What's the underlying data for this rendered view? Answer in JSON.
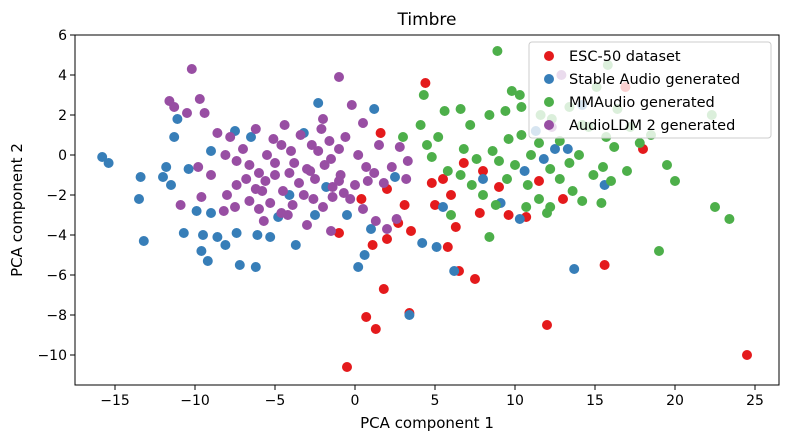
{
  "chart_data": {
    "type": "scatter",
    "title": "Timbre",
    "xlabel": "PCA component 1",
    "ylabel": "PCA component 2",
    "xlim": [
      -17.5,
      26.5
    ],
    "ylim": [
      -11.5,
      6.0
    ],
    "xticks": [
      -15,
      -10,
      -5,
      0,
      5,
      10,
      15,
      20,
      25
    ],
    "yticks": [
      -10,
      -8,
      -6,
      -4,
      -2,
      0,
      2,
      4,
      6
    ],
    "xtick_labels": [
      "−15",
      "−10",
      "−5",
      "0",
      "5",
      "10",
      "15",
      "20",
      "25"
    ],
    "ytick_labels": [
      "−10",
      "−8",
      "−6",
      "−4",
      "−2",
      "0",
      "2",
      "4",
      "6"
    ],
    "grid": false,
    "legend_position": "top-right",
    "series": [
      {
        "name": "ESC-50 dataset",
        "color": "#e41a1c",
        "points": [
          [
            -0.5,
            -10.6
          ],
          [
            1.3,
            -8.7
          ],
          [
            0.7,
            -8.1
          ],
          [
            1.8,
            -6.7
          ],
          [
            3.4,
            -7.9
          ],
          [
            4.4,
            3.6
          ],
          [
            2.0,
            -4.2
          ],
          [
            1.1,
            -4.5
          ],
          [
            -1.0,
            -3.9
          ],
          [
            2.7,
            -3.4
          ],
          [
            3.5,
            -3.8
          ],
          [
            4.8,
            -1.4
          ],
          [
            3.1,
            -2.5
          ],
          [
            2.0,
            -1.7
          ],
          [
            0.4,
            -2.2
          ],
          [
            1.6,
            1.1
          ],
          [
            5.5,
            -1.2
          ],
          [
            6.0,
            -2.0
          ],
          [
            6.3,
            -3.6
          ],
          [
            6.5,
            -5.8
          ],
          [
            7.5,
            -6.2
          ],
          [
            7.8,
            -2.9
          ],
          [
            8.0,
            -0.8
          ],
          [
            9.6,
            -3.0
          ],
          [
            10.7,
            -3.1
          ],
          [
            12.0,
            -8.5
          ],
          [
            15.6,
            -5.5
          ],
          [
            16.9,
            3.4
          ],
          [
            18.0,
            0.3
          ],
          [
            24.5,
            -10.0
          ],
          [
            5.0,
            -2.5
          ],
          [
            9.0,
            -1.6
          ],
          [
            11.5,
            -1.3
          ],
          [
            6.8,
            -0.4
          ],
          [
            13.0,
            -2.2
          ],
          [
            5.8,
            -4.6
          ]
        ]
      },
      {
        "name": "Stable Audio generated",
        "color": "#377eb8",
        "points": [
          [
            -15.8,
            -0.1
          ],
          [
            -15.4,
            -0.4
          ],
          [
            -13.5,
            -2.2
          ],
          [
            -13.4,
            -1.1
          ],
          [
            -13.2,
            -4.3
          ],
          [
            -12.0,
            -1.1
          ],
          [
            -11.8,
            -0.6
          ],
          [
            -11.5,
            -1.5
          ],
          [
            -11.1,
            1.8
          ],
          [
            -11.3,
            0.9
          ],
          [
            -10.7,
            -3.9
          ],
          [
            -10.4,
            -0.7
          ],
          [
            -9.9,
            -2.8
          ],
          [
            -9.6,
            -4.8
          ],
          [
            -9.5,
            -4.0
          ],
          [
            -9.2,
            -5.3
          ],
          [
            -9.0,
            -2.9
          ],
          [
            -8.6,
            -4.1
          ],
          [
            -8.1,
            -4.5
          ],
          [
            -7.4,
            -3.9
          ],
          [
            -7.2,
            -5.5
          ],
          [
            -6.2,
            -5.6
          ],
          [
            -6.1,
            -4.0
          ],
          [
            -5.3,
            -4.1
          ],
          [
            -4.8,
            -3.1
          ],
          [
            -4.1,
            -2.0
          ],
          [
            -3.7,
            -4.5
          ],
          [
            -2.5,
            -3.0
          ],
          [
            -2.3,
            2.6
          ],
          [
            -1.8,
            -1.6
          ],
          [
            -0.5,
            -3.0
          ],
          [
            0.2,
            -5.6
          ],
          [
            0.6,
            -5.0
          ],
          [
            1.0,
            -3.7
          ],
          [
            2.5,
            -1.1
          ],
          [
            3.4,
            -8.0
          ],
          [
            4.2,
            -4.4
          ],
          [
            5.1,
            -4.6
          ],
          [
            5.5,
            -2.6
          ],
          [
            6.2,
            -5.8
          ],
          [
            8.0,
            -1.2
          ],
          [
            9.1,
            -2.4
          ],
          [
            10.3,
            -3.2
          ],
          [
            10.6,
            -0.8
          ],
          [
            11.3,
            1.2
          ],
          [
            11.8,
            -0.2
          ],
          [
            12.5,
            0.3
          ],
          [
            13.3,
            0.3
          ],
          [
            13.7,
            -5.7
          ],
          [
            14.2,
            2.5
          ],
          [
            15.6,
            -1.5
          ],
          [
            -6.5,
            0.9
          ],
          [
            -7.5,
            1.2
          ],
          [
            -3.2,
            1.1
          ],
          [
            1.2,
            2.3
          ],
          [
            -9.0,
            0.2
          ]
        ]
      },
      {
        "name": "MMAudio generated",
        "color": "#4daf4a",
        "points": [
          [
            8.9,
            5.2
          ],
          [
            4.3,
            3.0
          ],
          [
            5.6,
            2.2
          ],
          [
            6.6,
            2.3
          ],
          [
            7.2,
            1.5
          ],
          [
            8.4,
            2.0
          ],
          [
            9.4,
            2.2
          ],
          [
            10.4,
            2.4
          ],
          [
            9.8,
            3.2
          ],
          [
            10.3,
            3.0
          ],
          [
            11.6,
            2.0
          ],
          [
            12.3,
            1.8
          ],
          [
            13.4,
            2.4
          ],
          [
            14.2,
            1.5
          ],
          [
            14.6,
            1.4
          ],
          [
            15.1,
            3.4
          ],
          [
            15.8,
            4.5
          ],
          [
            16.4,
            2.3
          ],
          [
            17.2,
            1.4
          ],
          [
            17.8,
            0.6
          ],
          [
            18.5,
            1.0
          ],
          [
            19.5,
            -0.5
          ],
          [
            20.0,
            -1.3
          ],
          [
            22.3,
            2.0
          ],
          [
            22.5,
            -2.6
          ],
          [
            23.4,
            -3.2
          ],
          [
            19.0,
            -4.8
          ],
          [
            15.5,
            -0.6
          ],
          [
            16.2,
            0.4
          ],
          [
            17.0,
            -0.8
          ],
          [
            13.4,
            -0.4
          ],
          [
            12.8,
            0.7
          ],
          [
            11.5,
            0.6
          ],
          [
            10.4,
            1.0
          ],
          [
            9.6,
            0.8
          ],
          [
            8.6,
            0.2
          ],
          [
            7.6,
            -0.2
          ],
          [
            6.8,
            0.3
          ],
          [
            5.2,
            0.9
          ],
          [
            4.5,
            0.5
          ],
          [
            4.8,
            -0.1
          ],
          [
            5.8,
            -0.8
          ],
          [
            6.6,
            -1.0
          ],
          [
            7.3,
            -1.5
          ],
          [
            8.0,
            -2.0
          ],
          [
            8.8,
            -2.5
          ],
          [
            9.5,
            -1.2
          ],
          [
            10.0,
            -0.5
          ],
          [
            10.8,
            -1.5
          ],
          [
            11.5,
            -2.2
          ],
          [
            12.2,
            -2.6
          ],
          [
            12.8,
            -1.2
          ],
          [
            13.6,
            -1.8
          ],
          [
            14.2,
            -2.3
          ],
          [
            14.9,
            -1.0
          ],
          [
            15.4,
            -2.4
          ],
          [
            16.0,
            -1.3
          ],
          [
            6.0,
            -3.0
          ],
          [
            8.4,
            -4.1
          ],
          [
            10.7,
            -2.6
          ],
          [
            12.0,
            -2.9
          ],
          [
            11.0,
            0.0
          ],
          [
            9.0,
            -0.3
          ],
          [
            4.1,
            1.5
          ],
          [
            3.0,
            0.9
          ],
          [
            15.7,
            0.9
          ],
          [
            14.0,
            0.0
          ],
          [
            12.2,
            -0.7
          ]
        ]
      },
      {
        "name": "AudioLDM 2 generated",
        "color": "#984ea3",
        "points": [
          [
            -10.2,
            4.3
          ],
          [
            -11.6,
            2.7
          ],
          [
            -11.3,
            2.4
          ],
          [
            -10.5,
            2.1
          ],
          [
            -9.7,
            2.8
          ],
          [
            -9.4,
            2.1
          ],
          [
            -8.6,
            1.1
          ],
          [
            -7.8,
            0.9
          ],
          [
            -8.1,
            0.0
          ],
          [
            -7.4,
            -0.3
          ],
          [
            -6.6,
            -0.5
          ],
          [
            -6.0,
            -0.9
          ],
          [
            -5.5,
            0.0
          ],
          [
            -5.1,
            0.8
          ],
          [
            -4.6,
            0.5
          ],
          [
            -4.0,
            0.2
          ],
          [
            -3.4,
            1.0
          ],
          [
            -2.7,
            0.5
          ],
          [
            -2.1,
            1.3
          ],
          [
            -1.6,
            0.7
          ],
          [
            -1.0,
            0.3
          ],
          [
            -0.6,
            0.9
          ],
          [
            -0.2,
            2.5
          ],
          [
            -1.0,
            3.9
          ],
          [
            0.2,
            0.0
          ],
          [
            0.7,
            -0.6
          ],
          [
            1.2,
            -0.9
          ],
          [
            1.8,
            -1.4
          ],
          [
            2.3,
            -0.6
          ],
          [
            2.8,
            0.4
          ],
          [
            3.2,
            -1.2
          ],
          [
            3.3,
            -0.3
          ],
          [
            -0.3,
            -2.2
          ],
          [
            -0.9,
            -1.0
          ],
          [
            -1.4,
            -1.6
          ],
          [
            -1.9,
            -0.5
          ],
          [
            -2.5,
            -1.2
          ],
          [
            -3.0,
            -0.7
          ],
          [
            -3.5,
            -1.4
          ],
          [
            -4.1,
            -0.9
          ],
          [
            -4.5,
            -1.8
          ],
          [
            -5.0,
            -1.0
          ],
          [
            -5.6,
            -1.3
          ],
          [
            -6.2,
            -1.7
          ],
          [
            -6.8,
            -1.2
          ],
          [
            -7.4,
            -1.5
          ],
          [
            -8.0,
            -2.0
          ],
          [
            -9.6,
            -2.1
          ],
          [
            -9.0,
            -1.0
          ],
          [
            -8.2,
            -2.8
          ],
          [
            -7.5,
            -2.6
          ],
          [
            -6.6,
            -2.3
          ],
          [
            -6.0,
            -2.7
          ],
          [
            -5.3,
            -2.4
          ],
          [
            -4.6,
            -2.9
          ],
          [
            -3.9,
            -2.5
          ],
          [
            -3.2,
            -2.0
          ],
          [
            -2.6,
            -2.2
          ],
          [
            -2.0,
            -2.6
          ],
          [
            -1.4,
            -2.1
          ],
          [
            -0.7,
            -1.9
          ],
          [
            0.0,
            -1.5
          ],
          [
            0.5,
            -2.7
          ],
          [
            1.3,
            -3.3
          ],
          [
            2.0,
            -3.7
          ],
          [
            2.6,
            -3.2
          ],
          [
            -1.5,
            -3.8
          ],
          [
            -3.0,
            -3.5
          ],
          [
            -4.2,
            -3.0
          ],
          [
            -5.7,
            -3.3
          ],
          [
            -2.0,
            1.8
          ],
          [
            -4.4,
            1.5
          ],
          [
            -6.2,
            1.3
          ],
          [
            -7.0,
            0.3
          ],
          [
            0.5,
            1.6
          ],
          [
            1.5,
            0.5
          ],
          [
            -1.5,
            -0.2
          ],
          [
            -2.8,
            -0.8
          ],
          [
            -3.8,
            -0.4
          ],
          [
            -5.0,
            -0.4
          ],
          [
            -5.8,
            -1.8
          ],
          [
            -1.0,
            -1.3
          ],
          [
            0.8,
            -1.3
          ],
          [
            -2.3,
            0.2
          ],
          [
            12.9,
            4.0
          ],
          [
            12.3,
            1.4
          ],
          [
            -10.9,
            -2.5
          ],
          [
            -9.8,
            -0.6
          ]
        ]
      }
    ]
  }
}
